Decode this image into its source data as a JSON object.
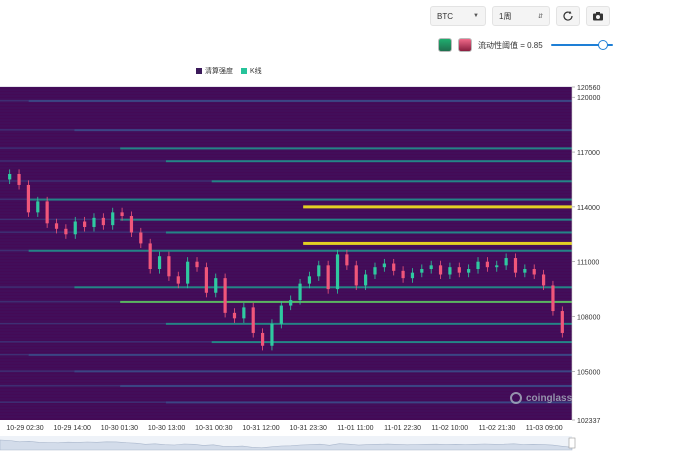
{
  "toolbar": {
    "coin": "BTC",
    "range": "1周",
    "refresh_icon": "refresh-icon",
    "camera_icon": "camera-icon"
  },
  "threshold": {
    "label": "流动性阈值 = 0.85",
    "value": 0.85
  },
  "legend": {
    "items": [
      {
        "name": "清算强度",
        "color": "#3b1a5a"
      },
      {
        "name": "K线",
        "color": "#26c39a"
      }
    ]
  },
  "watermark": "coinglass",
  "colors": {
    "background": "#440a56",
    "band_low": "#3b4b8a",
    "band_mid": "#21918c",
    "band_high": "#5ec962",
    "band_max": "#f4e61e",
    "candle_up": "#2fc9a0",
    "candle_down": "#f0567a"
  },
  "chart_data": {
    "type": "heatmap",
    "title": "",
    "x_tick_labels": [
      "10-29 02:30",
      "10-29 14:00",
      "10-30 01:30",
      "10-30 13:00",
      "10-31 00:30",
      "10-31 12:00",
      "10-31 23:30",
      "11-01 11:00",
      "11-01 22:30",
      "11-02 10:00",
      "11-02 21:30",
      "11-03 09:00"
    ],
    "y_tick_labels": [
      "120560",
      "120000",
      "117000",
      "114000",
      "111000",
      "108000",
      "105000",
      "102337"
    ],
    "ylim": [
      102337,
      120560
    ],
    "price_series": [
      115800,
      115200,
      113700,
      114300,
      113100,
      112800,
      112500,
      113200,
      112900,
      113400,
      113000,
      113700,
      113500,
      112600,
      112000,
      110600,
      111300,
      110200,
      109800,
      111000,
      110700,
      109300,
      110100,
      108200,
      107900,
      108500,
      107100,
      106400,
      107600,
      108600,
      108900,
      109800,
      110200,
      110800,
      109500,
      111400,
      110800,
      109700,
      110300,
      110700,
      110900,
      110500,
      110100,
      110400,
      110600,
      110800,
      110300,
      110700,
      110400,
      110600,
      111000,
      110700,
      110800,
      111200,
      110400,
      110600,
      110300,
      109700,
      108300,
      107100
    ],
    "liquidity_bands": [
      {
        "price": 119800,
        "intensity": 0.25
      },
      {
        "price": 118200,
        "intensity": 0.3
      },
      {
        "price": 117200,
        "intensity": 0.45
      },
      {
        "price": 116500,
        "intensity": 0.55
      },
      {
        "price": 115400,
        "intensity": 0.5
      },
      {
        "price": 114400,
        "intensity": 0.6
      },
      {
        "price": 114000,
        "intensity": 0.95
      },
      {
        "price": 113300,
        "intensity": 0.55
      },
      {
        "price": 112600,
        "intensity": 0.6
      },
      {
        "price": 112000,
        "intensity": 1.0
      },
      {
        "price": 111600,
        "intensity": 0.7
      },
      {
        "price": 109600,
        "intensity": 0.5
      },
      {
        "price": 108800,
        "intensity": 0.85
      },
      {
        "price": 107600,
        "intensity": 0.45
      },
      {
        "price": 106600,
        "intensity": 0.5
      },
      {
        "price": 105900,
        "intensity": 0.4
      },
      {
        "price": 105000,
        "intensity": 0.35
      },
      {
        "price": 104200,
        "intensity": 0.3
      },
      {
        "price": 103300,
        "intensity": 0.25
      }
    ]
  }
}
